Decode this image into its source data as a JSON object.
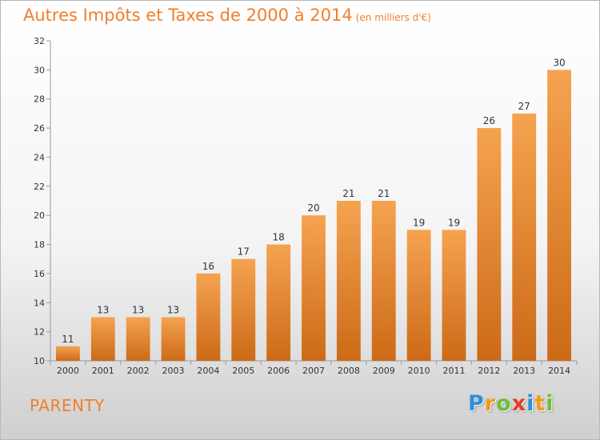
{
  "title": "Autres Impôts et Taxes de 2000 à 2014",
  "subtitle": "(en milliers d'€)",
  "place": "PARENTY",
  "brand": {
    "letters": [
      "P",
      "r",
      "o",
      "x",
      "i",
      "t",
      "i"
    ],
    "colors": [
      "#2f8fd8",
      "#f29a1b",
      "#6cbf3b",
      "#e83b2c",
      "#2f8fd8",
      "#f29a1b",
      "#6cbf3b"
    ]
  },
  "colors": {
    "accent": "#f07f2a",
    "bar_top": "#f5a350",
    "bar_bottom": "#cc6a17"
  },
  "chart_data": {
    "type": "bar",
    "categories": [
      "2000",
      "2001",
      "2002",
      "2003",
      "2004",
      "2005",
      "2006",
      "2007",
      "2008",
      "2009",
      "2010",
      "2011",
      "2012",
      "2013",
      "2014"
    ],
    "values": [
      11,
      13,
      13,
      13,
      16,
      17,
      18,
      20,
      21,
      21,
      19,
      19,
      26,
      27,
      30
    ],
    "title": "Autres Impôts et Taxes de 2000 à 2014",
    "xlabel": "",
    "ylabel": "",
    "ylim": [
      10,
      32
    ],
    "yticks": [
      10,
      12,
      14,
      16,
      18,
      20,
      22,
      24,
      26,
      28,
      30,
      32
    ],
    "grid": false,
    "legend": "none"
  }
}
